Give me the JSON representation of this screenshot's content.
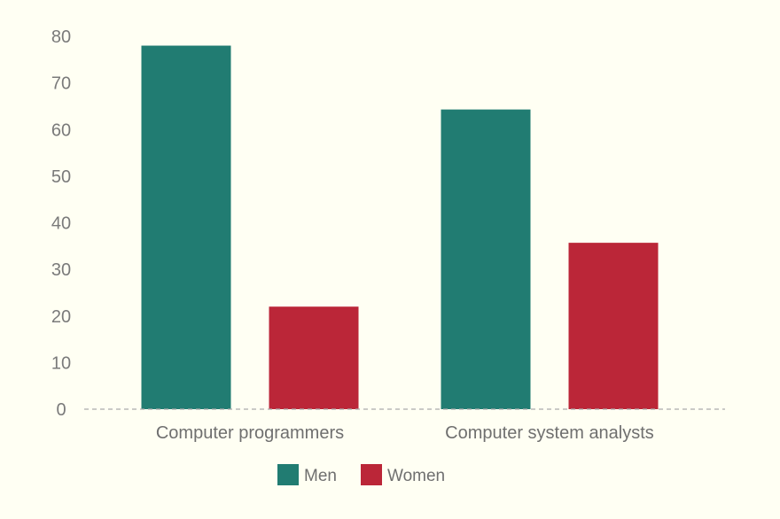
{
  "chart_data": {
    "type": "bar",
    "categories": [
      "Computer programmers",
      "Computer system analysts"
    ],
    "series": [
      {
        "name": "Men",
        "values": [
          78,
          64.3
        ],
        "color": "#217c72"
      },
      {
        "name": "Women",
        "values": [
          22,
          35.7
        ],
        "color": "#bb2638"
      }
    ],
    "yticks": [
      0,
      10,
      20,
      30,
      40,
      50,
      60,
      70,
      80
    ],
    "ylim": [
      0,
      80
    ],
    "grid": false,
    "baseline": "dashed",
    "legend_position": "bottom-center",
    "background": "#fffff3",
    "axis_text_color": "#7a7a7a",
    "baseline_color": "#aaaaaa"
  }
}
